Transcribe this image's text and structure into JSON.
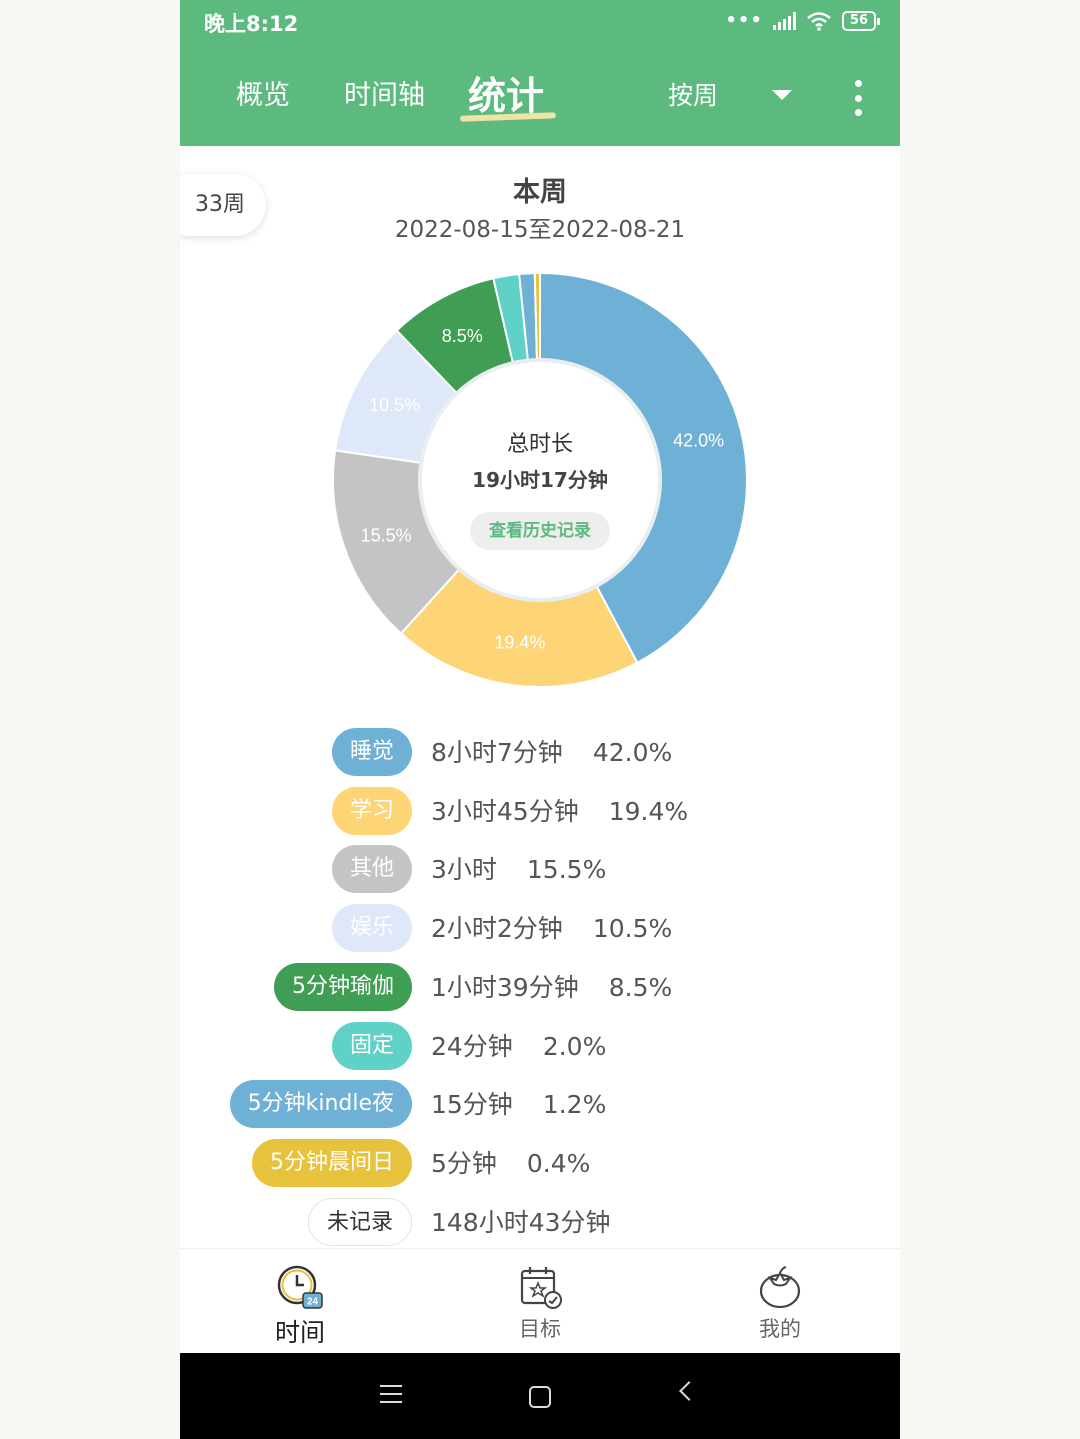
{
  "status_bar": {
    "time": "晚上8:12",
    "dots": "•••",
    "battery": "56"
  },
  "header": {
    "tabs": [
      "概览",
      "时间轴",
      "统计"
    ],
    "active_tab": "统计",
    "period": "按周",
    "colors": {
      "header_bg": "#5dba7f",
      "active_underline": "#f1e3a7"
    }
  },
  "week": {
    "pill": "33周",
    "title": "本周",
    "range": "2022-08-15至2022-08-21"
  },
  "center": {
    "label": "总时长",
    "total": "19小时17分钟",
    "history_button": "查看历史记录"
  },
  "chart_data": {
    "type": "pie",
    "variant": "donut",
    "categories": [
      "睡觉",
      "学习",
      "其他",
      "娱乐",
      "5分钟瑜伽",
      "固定",
      "5分钟kindle夜",
      "5分钟晨间日"
    ],
    "values": [
      42.0,
      19.4,
      15.5,
      10.5,
      8.5,
      2.0,
      1.2,
      0.4
    ],
    "colors": [
      "#6fb1d6",
      "#fdd577",
      "#c4c4c4",
      "#dfe8f8",
      "#3f9e53",
      "#5fd1c6",
      "#6fb1d6",
      "#e7c23c"
    ],
    "labels": [
      "42.0%",
      "19.4%",
      "15.5%",
      "10.5%",
      "8.5%",
      "",
      "",
      ""
    ]
  },
  "legend": [
    {
      "tag": "睡觉",
      "duration": "8小时7分钟",
      "percent": "42.0%",
      "color": "#6fb1d6"
    },
    {
      "tag": "学习",
      "duration": "3小时45分钟",
      "percent": "19.4%",
      "color": "#fdd577"
    },
    {
      "tag": "其他",
      "duration": "3小时",
      "percent": "15.5%",
      "color": "#c4c4c4"
    },
    {
      "tag": "娱乐",
      "duration": "2小时2分钟",
      "percent": "10.5%",
      "color": "#dfe8f8"
    },
    {
      "tag": "5分钟瑜伽",
      "duration": "1小时39分钟",
      "percent": "8.5%",
      "color": "#3f9e53"
    },
    {
      "tag": "固定",
      "duration": "24分钟",
      "percent": "2.0%",
      "color": "#5fd1c6"
    },
    {
      "tag": "5分钟kindle夜",
      "duration": "15分钟",
      "percent": "1.2%",
      "color": "#6fb1d6"
    },
    {
      "tag": "5分钟晨间日",
      "duration": "5分钟",
      "percent": "0.4%",
      "color": "#e7c23c"
    },
    {
      "tag": "未记录",
      "duration": "148小时43分钟",
      "percent": "",
      "color": "#ffffff"
    }
  ],
  "bottom_nav": {
    "items": [
      {
        "label": "时间",
        "icon": "clock-24-icon"
      },
      {
        "label": "目标",
        "icon": "calendar-star-icon"
      },
      {
        "label": "我的",
        "icon": "tomato-icon"
      }
    ]
  }
}
